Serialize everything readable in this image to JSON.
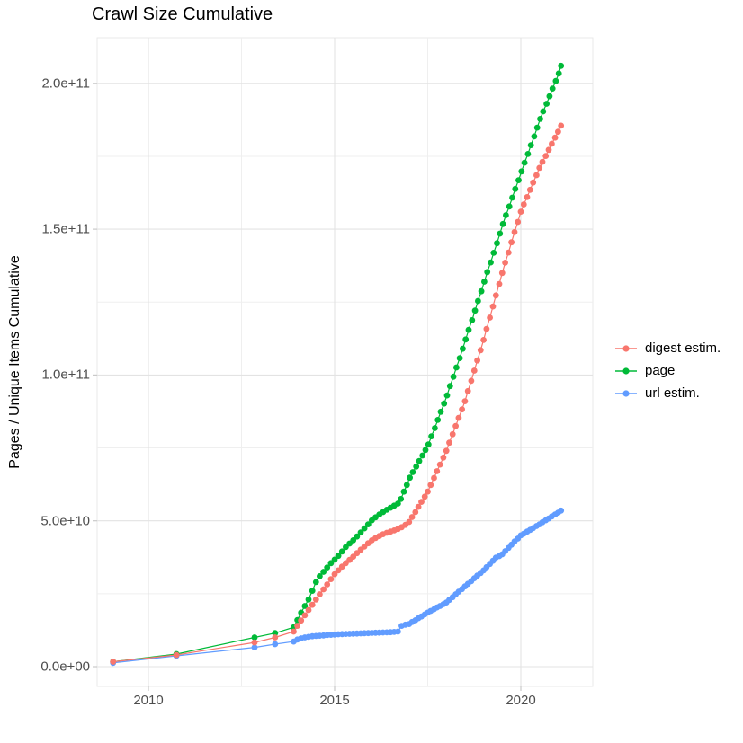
{
  "chart_data": {
    "type": "line",
    "title": "Crawl Size Cumulative",
    "xlabel": "",
    "ylabel": "Pages / Unique Items Cumulative",
    "y_unit": "values stored in billions (1 = 1e9)",
    "xlim": [
      2008.6,
      2021.9
    ],
    "ylim_billions": [
      0,
      216
    ],
    "grid": "major and minor, light gray on white",
    "legend_position": "right-middle",
    "x_axis": {
      "ticks": [
        {
          "label": "2010",
          "value": 2010
        },
        {
          "label": "2015",
          "value": 2015
        },
        {
          "label": "2020",
          "value": 2020
        }
      ],
      "minor": [
        2012.5,
        2017.5
      ]
    },
    "y_axis": {
      "ticks": [
        {
          "label": "0.0e+00",
          "value": 0
        },
        {
          "label": "5.0e+10",
          "value": 50
        },
        {
          "label": "1.0e+11",
          "value": 100
        },
        {
          "label": "1.5e+11",
          "value": 150
        },
        {
          "label": "2.0e+11",
          "value": 200
        }
      ],
      "minor": [
        25,
        75,
        125,
        175
      ]
    },
    "series": [
      {
        "name": "digest estim.",
        "color": "#F8766D",
        "points_billions": [
          [
            2009.05,
            1.7
          ],
          [
            2010.75,
            4.0
          ],
          [
            2012.85,
            8.3
          ],
          [
            2013.4,
            10.0
          ],
          [
            2013.9,
            12.0
          ],
          [
            2014.0,
            14.0
          ],
          [
            2014.1,
            15.8
          ],
          [
            2014.2,
            17.6
          ],
          [
            2014.3,
            19.4
          ],
          [
            2014.4,
            21.2
          ],
          [
            2014.5,
            23.0
          ],
          [
            2014.6,
            24.8
          ],
          [
            2014.7,
            26.5
          ],
          [
            2014.8,
            28.2
          ],
          [
            2014.9,
            30.0
          ],
          [
            2015.0,
            31.7
          ],
          [
            2015.1,
            33.0
          ],
          [
            2015.2,
            34.3
          ],
          [
            2015.3,
            35.5
          ],
          [
            2015.4,
            36.6
          ],
          [
            2015.5,
            37.7
          ],
          [
            2015.6,
            38.9
          ],
          [
            2015.7,
            40.1
          ],
          [
            2015.8,
            41.2
          ],
          [
            2015.9,
            42.3
          ],
          [
            2016.0,
            43.3
          ],
          [
            2016.1,
            44.1
          ],
          [
            2016.2,
            44.8
          ],
          [
            2016.3,
            45.4
          ],
          [
            2016.4,
            45.9
          ],
          [
            2016.5,
            46.3
          ],
          [
            2016.6,
            46.7
          ],
          [
            2016.7,
            47.2
          ],
          [
            2016.8,
            47.8
          ],
          [
            2016.9,
            48.6
          ],
          [
            2017.0,
            49.6
          ],
          [
            2017.08,
            51.3
          ],
          [
            2017.17,
            53.0
          ],
          [
            2017.25,
            54.8
          ],
          [
            2017.33,
            56.5
          ],
          [
            2017.42,
            58.3
          ],
          [
            2017.5,
            60.0
          ],
          [
            2017.58,
            62.3
          ],
          [
            2017.67,
            64.7
          ],
          [
            2017.75,
            67.0
          ],
          [
            2017.83,
            69.3
          ],
          [
            2017.92,
            71.7
          ],
          [
            2018.0,
            74.0
          ],
          [
            2018.08,
            76.8
          ],
          [
            2018.17,
            79.7
          ],
          [
            2018.25,
            82.5
          ],
          [
            2018.33,
            85.3
          ],
          [
            2018.42,
            88.2
          ],
          [
            2018.5,
            91.0
          ],
          [
            2018.58,
            94.5
          ],
          [
            2018.67,
            98.0
          ],
          [
            2018.75,
            101.5
          ],
          [
            2018.83,
            105.0
          ],
          [
            2018.92,
            108.5
          ],
          [
            2019.0,
            112.0
          ],
          [
            2019.08,
            115.8
          ],
          [
            2019.17,
            119.7
          ],
          [
            2019.25,
            123.5
          ],
          [
            2019.33,
            127.3
          ],
          [
            2019.42,
            131.2
          ],
          [
            2019.5,
            135.0
          ],
          [
            2019.58,
            138.5
          ],
          [
            2019.67,
            142.0
          ],
          [
            2019.75,
            145.5
          ],
          [
            2019.83,
            149.0
          ],
          [
            2019.92,
            152.5
          ],
          [
            2020.0,
            156.0
          ],
          [
            2020.08,
            158.5
          ],
          [
            2020.17,
            161.0
          ],
          [
            2020.25,
            163.5
          ],
          [
            2020.33,
            166.0
          ],
          [
            2020.42,
            168.5
          ],
          [
            2020.5,
            171.0
          ],
          [
            2020.58,
            173.1
          ],
          [
            2020.67,
            175.1
          ],
          [
            2020.75,
            177.2
          ],
          [
            2020.83,
            179.3
          ],
          [
            2020.92,
            181.4
          ],
          [
            2021.0,
            183.4
          ],
          [
            2021.08,
            185.5
          ]
        ]
      },
      {
        "name": "page",
        "color": "#00BA38",
        "points_billions": [
          [
            2009.05,
            1.7
          ],
          [
            2010.75,
            4.3
          ],
          [
            2012.85,
            10.0
          ],
          [
            2013.4,
            11.5
          ],
          [
            2013.9,
            13.5
          ],
          [
            2014.0,
            16.0
          ],
          [
            2014.1,
            18.5
          ],
          [
            2014.2,
            20.8
          ],
          [
            2014.3,
            23.0
          ],
          [
            2014.4,
            26.0
          ],
          [
            2014.5,
            29.0
          ],
          [
            2014.6,
            31.0
          ],
          [
            2014.7,
            32.5
          ],
          [
            2014.8,
            34.0
          ],
          [
            2014.9,
            35.5
          ],
          [
            2015.0,
            36.7
          ],
          [
            2015.1,
            38.0
          ],
          [
            2015.2,
            39.5
          ],
          [
            2015.3,
            41.0
          ],
          [
            2015.4,
            42.2
          ],
          [
            2015.5,
            43.3
          ],
          [
            2015.6,
            44.6
          ],
          [
            2015.7,
            46.0
          ],
          [
            2015.8,
            47.4
          ],
          [
            2015.9,
            48.8
          ],
          [
            2016.0,
            50.2
          ],
          [
            2016.1,
            51.2
          ],
          [
            2016.2,
            52.2
          ],
          [
            2016.3,
            53.0
          ],
          [
            2016.4,
            53.8
          ],
          [
            2016.5,
            54.5
          ],
          [
            2016.6,
            55.2
          ],
          [
            2016.7,
            55.9
          ],
          [
            2016.78,
            57.5
          ],
          [
            2016.86,
            60.0
          ],
          [
            2016.94,
            62.3
          ],
          [
            2017.02,
            64.8
          ],
          [
            2017.1,
            66.7
          ],
          [
            2017.19,
            68.6
          ],
          [
            2017.27,
            70.5
          ],
          [
            2017.36,
            72.4
          ],
          [
            2017.44,
            74.3
          ],
          [
            2017.52,
            76.2
          ],
          [
            2017.6,
            79.0
          ],
          [
            2017.69,
            81.8
          ],
          [
            2017.77,
            84.6
          ],
          [
            2017.85,
            87.4
          ],
          [
            2017.94,
            90.2
          ],
          [
            2018.02,
            93.0
          ],
          [
            2018.1,
            96.2
          ],
          [
            2018.19,
            99.4
          ],
          [
            2018.27,
            102.6
          ],
          [
            2018.36,
            105.8
          ],
          [
            2018.44,
            109.0
          ],
          [
            2018.52,
            112.2
          ],
          [
            2018.6,
            115.5
          ],
          [
            2018.69,
            118.8
          ],
          [
            2018.77,
            122.1
          ],
          [
            2018.85,
            125.4
          ],
          [
            2018.94,
            128.7
          ],
          [
            2019.02,
            132.0
          ],
          [
            2019.1,
            135.3
          ],
          [
            2019.19,
            138.6
          ],
          [
            2019.27,
            141.9
          ],
          [
            2019.36,
            145.2
          ],
          [
            2019.44,
            148.5
          ],
          [
            2019.52,
            151.8
          ],
          [
            2019.6,
            154.8
          ],
          [
            2019.69,
            157.8
          ],
          [
            2019.77,
            160.8
          ],
          [
            2019.85,
            163.8
          ],
          [
            2019.94,
            166.8
          ],
          [
            2020.02,
            169.8
          ],
          [
            2020.1,
            172.8
          ],
          [
            2020.19,
            175.8
          ],
          [
            2020.27,
            178.8
          ],
          [
            2020.36,
            181.8
          ],
          [
            2020.44,
            184.8
          ],
          [
            2020.52,
            187.8
          ],
          [
            2020.6,
            190.4
          ],
          [
            2020.69,
            193.0
          ],
          [
            2020.77,
            195.6
          ],
          [
            2020.85,
            198.2
          ],
          [
            2020.94,
            200.8
          ],
          [
            2021.02,
            203.4
          ],
          [
            2021.08,
            206.0
          ]
        ]
      },
      {
        "name": "url estim.",
        "color": "#619CFF",
        "points_billions": [
          [
            2009.05,
            1.3
          ],
          [
            2010.75,
            3.7
          ],
          [
            2012.85,
            6.6
          ],
          [
            2013.4,
            7.7
          ],
          [
            2013.9,
            8.6
          ],
          [
            2014.0,
            9.3
          ],
          [
            2014.1,
            9.7
          ],
          [
            2014.2,
            10.0
          ],
          [
            2014.3,
            10.2
          ],
          [
            2014.4,
            10.4
          ],
          [
            2014.5,
            10.5
          ],
          [
            2014.6,
            10.6
          ],
          [
            2014.7,
            10.7
          ],
          [
            2014.8,
            10.8
          ],
          [
            2014.9,
            10.9
          ],
          [
            2015.0,
            11.0
          ],
          [
            2015.1,
            11.1
          ],
          [
            2015.2,
            11.15
          ],
          [
            2015.3,
            11.2
          ],
          [
            2015.4,
            11.25
          ],
          [
            2015.5,
            11.3
          ],
          [
            2015.6,
            11.35
          ],
          [
            2015.7,
            11.4
          ],
          [
            2015.8,
            11.45
          ],
          [
            2015.9,
            11.5
          ],
          [
            2016.0,
            11.55
          ],
          [
            2016.1,
            11.6
          ],
          [
            2016.2,
            11.65
          ],
          [
            2016.3,
            11.7
          ],
          [
            2016.4,
            11.75
          ],
          [
            2016.5,
            11.8
          ],
          [
            2016.6,
            11.9
          ],
          [
            2016.7,
            12.0
          ],
          [
            2016.8,
            14.0
          ],
          [
            2016.9,
            14.4
          ],
          [
            2017.0,
            14.6
          ],
          [
            2017.08,
            15.3
          ],
          [
            2017.17,
            15.9
          ],
          [
            2017.25,
            16.6
          ],
          [
            2017.33,
            17.2
          ],
          [
            2017.42,
            17.9
          ],
          [
            2017.5,
            18.5
          ],
          [
            2017.58,
            19.1
          ],
          [
            2017.67,
            19.7
          ],
          [
            2017.75,
            20.3
          ],
          [
            2017.83,
            20.8
          ],
          [
            2017.92,
            21.4
          ],
          [
            2018.0,
            22.0
          ],
          [
            2018.08,
            22.9
          ],
          [
            2018.17,
            23.8
          ],
          [
            2018.25,
            24.8
          ],
          [
            2018.33,
            25.7
          ],
          [
            2018.42,
            26.6
          ],
          [
            2018.5,
            27.5
          ],
          [
            2018.58,
            28.4
          ],
          [
            2018.67,
            29.3
          ],
          [
            2018.75,
            30.3
          ],
          [
            2018.83,
            31.2
          ],
          [
            2018.92,
            32.1
          ],
          [
            2019.0,
            33.0
          ],
          [
            2019.08,
            34.1
          ],
          [
            2019.17,
            35.2
          ],
          [
            2019.25,
            36.3
          ],
          [
            2019.33,
            37.4
          ],
          [
            2019.42,
            37.9
          ],
          [
            2019.5,
            38.5
          ],
          [
            2019.58,
            39.6
          ],
          [
            2019.67,
            40.7
          ],
          [
            2019.75,
            41.8
          ],
          [
            2019.83,
            42.9
          ],
          [
            2019.92,
            43.9
          ],
          [
            2020.0,
            45.0
          ],
          [
            2020.08,
            45.6
          ],
          [
            2020.17,
            46.3
          ],
          [
            2020.25,
            46.9
          ],
          [
            2020.33,
            47.5
          ],
          [
            2020.42,
            48.2
          ],
          [
            2020.5,
            48.8
          ],
          [
            2020.58,
            49.5
          ],
          [
            2020.67,
            50.2
          ],
          [
            2020.75,
            50.8
          ],
          [
            2020.83,
            51.5
          ],
          [
            2020.92,
            52.2
          ],
          [
            2021.0,
            52.8
          ],
          [
            2021.08,
            53.5
          ]
        ]
      }
    ],
    "style": {
      "major_grid_color": "#e3e3e3",
      "minor_grid_color": "#efefef",
      "panel_border_color": "#e9e9e9",
      "tick_mark_color": "#c9c9c9",
      "tick_label_color": "#4d4d4d",
      "background": "#ffffff"
    }
  }
}
